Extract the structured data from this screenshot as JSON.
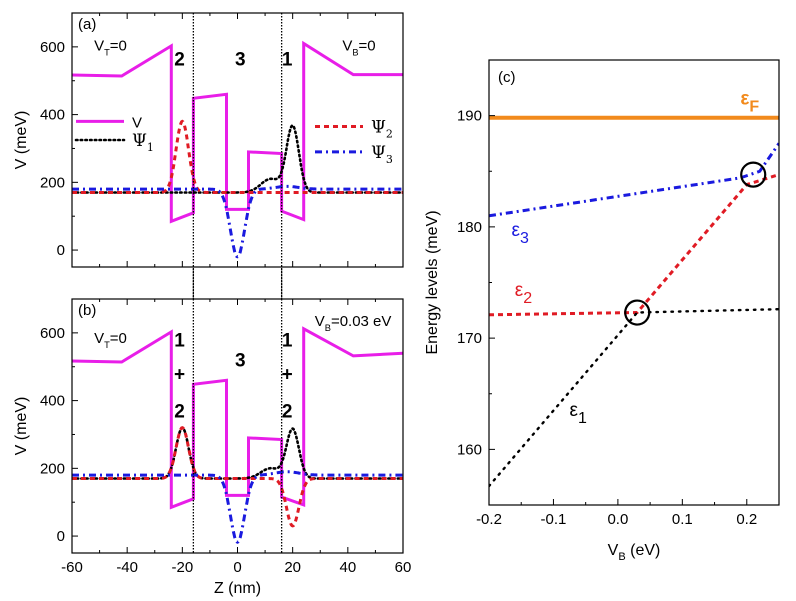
{
  "chart_data": [
    {
      "id": "a",
      "type": "line",
      "panel_label": "(a)",
      "xlabel": "",
      "ylabel": "V (meV)",
      "xlim": [
        -60,
        60
      ],
      "ylim": [
        -50,
        700
      ],
      "xticks": [
        -60,
        -40,
        -20,
        0,
        20,
        40,
        60
      ],
      "xtick_labels_shown": false,
      "yticks": [
        0,
        200,
        400,
        600
      ],
      "vlines": [
        -16,
        16
      ],
      "annotations": [
        {
          "text": "V",
          "sub": "T",
          "suffix": "=0",
          "x": -52,
          "y": 590,
          "color": "#000000"
        },
        {
          "text": "V",
          "sub": "B",
          "suffix": "=0",
          "x": 38,
          "y": 590,
          "color": "#000000"
        },
        {
          "text": "2",
          "x": -21,
          "y": 545,
          "color": "#e01b24",
          "bold": true
        },
        {
          "text": "3",
          "x": 1,
          "y": 545,
          "color": "#1a1adf",
          "bold": true
        },
        {
          "text": "1",
          "x": 18,
          "y": 545,
          "color": "#000000",
          "bold": true
        }
      ],
      "legend": [
        {
          "label": "V",
          "sub": "",
          "style": "solid",
          "color": "#e81ee8",
          "pos": "left-upper"
        },
        {
          "label": "Ψ",
          "sub": "1",
          "style": "dot",
          "color": "#000000",
          "pos": "left-lower"
        },
        {
          "label": "Ψ",
          "sub": "2",
          "style": "dash",
          "color": "#e01b24",
          "pos": "right-upper"
        },
        {
          "label": "Ψ",
          "sub": "3",
          "style": "dashdot",
          "color": "#1a1adf",
          "pos": "right-lower"
        }
      ],
      "series": [
        {
          "name": "V",
          "style": "solid",
          "color": "#e81ee8",
          "x": [
            -60,
            -42,
            -24,
            -24,
            -16,
            -16,
            -4,
            -4,
            4,
            4,
            16,
            16,
            24,
            24,
            42,
            60
          ],
          "y": [
            517,
            514,
            603,
            85,
            110,
            448,
            460,
            120,
            120,
            290,
            285,
            115,
            90,
            610,
            518,
            518
          ]
        },
        {
          "name": "Ψ1",
          "style": "dot",
          "color": "#000000",
          "baseline": 170,
          "peaks": [
            {
              "center": 20,
              "amp": 195,
              "width": 3.2
            },
            {
              "center": 12,
              "amp": 40,
              "width": 5
            }
          ]
        },
        {
          "name": "Ψ2",
          "style": "dash",
          "color": "#e01b24",
          "baseline": 170,
          "peaks": [
            {
              "center": -20,
              "amp": 210,
              "width": 3.2
            }
          ]
        },
        {
          "name": "Ψ3",
          "style": "dashdot",
          "color": "#1a1adf",
          "baseline": 180,
          "peaks": [
            {
              "center": 0,
              "amp": -200,
              "width": 3.6
            },
            {
              "center": 18,
              "amp": 8,
              "width": 6
            }
          ]
        }
      ]
    },
    {
      "id": "b",
      "type": "line",
      "panel_label": "(b)",
      "xlabel": "Z (nm)",
      "ylabel": "V (meV)",
      "xlim": [
        -60,
        60
      ],
      "ylim": [
        -50,
        700
      ],
      "xticks": [
        -60,
        -40,
        -20,
        0,
        20,
        40,
        60
      ],
      "xtick_labels_shown": true,
      "yticks": [
        0,
        200,
        400,
        600
      ],
      "vlines": [
        -16,
        16
      ],
      "annotations": [
        {
          "text": "V",
          "sub": "T",
          "suffix": "=0",
          "x": -52,
          "y": 570,
          "color": "#000000"
        },
        {
          "text": "V",
          "sub": "B",
          "suffix": "=0.03 eV",
          "x": 28,
          "y": 620,
          "color": "#000000"
        },
        {
          "text": "1",
          "x": -21,
          "y": 560,
          "color": "#000000",
          "bold": true
        },
        {
          "text": "+",
          "x": -21,
          "y": 460,
          "color": "#000000",
          "bold": true
        },
        {
          "text": "2",
          "x": -21,
          "y": 350,
          "color": "#e01b24",
          "bold": true
        },
        {
          "text": "3",
          "x": 1,
          "y": 500,
          "color": "#1a1adf",
          "bold": true
        },
        {
          "text": "1",
          "x": 18,
          "y": 560,
          "color": "#000000",
          "bold": true
        },
        {
          "text": "+",
          "x": 18,
          "y": 460,
          "color": "#000000",
          "bold": true
        },
        {
          "text": "2",
          "x": 18,
          "y": 350,
          "color": "#e01b24",
          "bold": true
        }
      ],
      "series": [
        {
          "name": "V",
          "style": "solid",
          "color": "#e81ee8",
          "x": [
            -60,
            -42,
            -24,
            -24,
            -16,
            -16,
            -4,
            -4,
            4,
            4,
            16,
            16,
            24,
            24,
            42,
            60
          ],
          "y": [
            517,
            514,
            603,
            85,
            110,
            448,
            460,
            120,
            120,
            290,
            285,
            115,
            92,
            612,
            532,
            540
          ]
        },
        {
          "name": "Ψ1",
          "style": "dot",
          "color": "#000000",
          "baseline": 170,
          "peaks": [
            {
              "center": -20,
              "amp": 150,
              "width": 3.2
            },
            {
              "center": 20,
              "amp": 145,
              "width": 3.2
            },
            {
              "center": 12,
              "amp": 30,
              "width": 5
            }
          ]
        },
        {
          "name": "Ψ2",
          "style": "dash",
          "color": "#e01b24",
          "baseline": 170,
          "peaks": [
            {
              "center": -20,
              "amp": 150,
              "width": 3.2
            },
            {
              "center": 20,
              "amp": -140,
              "width": 3.2
            }
          ]
        },
        {
          "name": "Ψ3",
          "style": "dashdot",
          "color": "#1a1adf",
          "baseline": 180,
          "peaks": [
            {
              "center": 0,
              "amp": -198,
              "width": 3.6
            },
            {
              "center": 18,
              "amp": 10,
              "width": 6
            }
          ]
        }
      ]
    },
    {
      "id": "c",
      "type": "line",
      "panel_label": "(c)",
      "xlabel": "V_B (eV)",
      "ylabel": "Energy levels (meV)",
      "xlim": [
        -0.2,
        0.25
      ],
      "ylim": [
        155,
        195
      ],
      "xticks": [
        -0.2,
        -0.1,
        0.0,
        0.1,
        0.2
      ],
      "xtick_labels": [
        "-0.2",
        "-0.1",
        "0.0",
        "0.1",
        "0.2"
      ],
      "yticks": [
        160,
        170,
        180,
        190
      ],
      "minor_yticks": [
        165,
        175,
        185
      ],
      "minor_xticks": [
        -0.15,
        -0.05,
        0.05,
        0.15
      ],
      "series": [
        {
          "name": "εF",
          "style": "solid",
          "color": "#f28a1c",
          "x": [
            -0.2,
            0.25
          ],
          "y": [
            189.8,
            189.8
          ]
        },
        {
          "name": "ε3",
          "style": "dashdot",
          "color": "#1a1adf",
          "x": [
            -0.2,
            0.19,
            0.22,
            0.25
          ],
          "y": [
            181.0,
            184.4,
            185.0,
            187.5
          ]
        },
        {
          "name": "ε2",
          "style": "dash",
          "color": "#e01b24",
          "x": [
            -0.2,
            0.03,
            0.2,
            0.25
          ],
          "y": [
            172.1,
            172.3,
            183.8,
            184.7
          ]
        },
        {
          "name": "ε1",
          "style": "dot",
          "color": "#000000",
          "x": [
            -0.2,
            0.03,
            0.25
          ],
          "y": [
            156.7,
            172.3,
            172.6
          ]
        }
      ],
      "labels": [
        {
          "text": "ε",
          "sub": "F",
          "x": 0.19,
          "y": 191.0,
          "color": "#f28a1c",
          "bold": true
        },
        {
          "text": "ε",
          "sub": "3",
          "x": -0.165,
          "y": 179.2,
          "color": "#1a1adf"
        },
        {
          "text": "ε",
          "sub": "2",
          "x": -0.16,
          "y": 173.8,
          "color": "#e01b24"
        },
        {
          "text": "ε",
          "sub": "1",
          "x": -0.075,
          "y": 163.0,
          "color": "#000000"
        }
      ],
      "circles": [
        {
          "x": 0.03,
          "y": 172.3
        },
        {
          "x": 0.21,
          "y": 184.7
        }
      ]
    }
  ]
}
